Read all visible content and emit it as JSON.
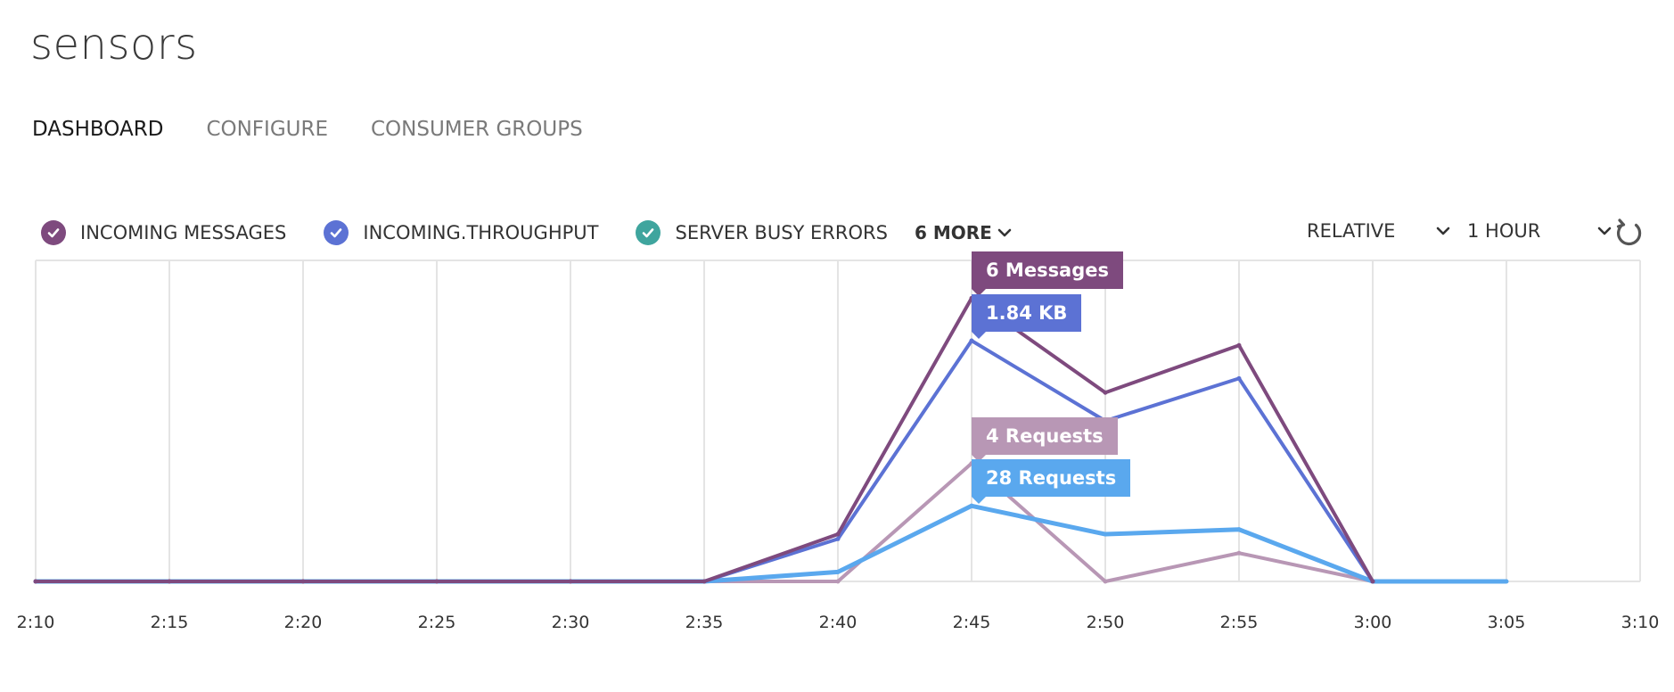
{
  "header": {
    "title": "sensors"
  },
  "tabs": [
    {
      "label": "DASHBOARD",
      "active": true
    },
    {
      "label": "CONFIGURE",
      "active": false
    },
    {
      "label": "CONSUMER GROUPS",
      "active": false
    }
  ],
  "legend": {
    "items": [
      {
        "label": "INCOMING MESSAGES",
        "color": "#7e4a7e",
        "icon": "check-icon"
      },
      {
        "label": "INCOMING.THROUGHPUT",
        "color": "#5c72d4",
        "icon": "check-icon"
      },
      {
        "label": "SERVER BUSY ERRORS",
        "color": "#3fa59e",
        "icon": "check-icon"
      }
    ],
    "more_label": "6 MORE"
  },
  "controls": {
    "mode_label": "RELATIVE",
    "range_label": "1 HOUR",
    "refresh_icon": "refresh-icon"
  },
  "callouts": [
    {
      "text": "6 Messages",
      "color": "#7e4a7e"
    },
    {
      "text": "1.84 KB",
      "color": "#5c72d4"
    },
    {
      "text": "4 Requests",
      "color": "#b897b5"
    },
    {
      "text": "28 Requests",
      "color": "#5aa8ee"
    }
  ],
  "chart_data": {
    "type": "line",
    "x": [
      "2:10",
      "2:15",
      "2:20",
      "2:25",
      "2:30",
      "2:35",
      "2:40",
      "2:45",
      "2:50",
      "2:55",
      "3:00",
      "3:05",
      "3:10"
    ],
    "ylim": [
      0,
      6.8
    ],
    "grid": true,
    "series": [
      {
        "name": "INCOMING MESSAGES",
        "color": "#7e4a7e",
        "values": [
          0,
          0,
          0,
          0,
          0,
          0,
          1.0,
          6.0,
          4.0,
          5.0,
          0,
          null,
          null
        ]
      },
      {
        "name": "INCOMING.THROUGHPUT",
        "color": "#5c72d4",
        "values": [
          0,
          0,
          0,
          0,
          0,
          0,
          0.9,
          5.1,
          3.4,
          4.3,
          0,
          null,
          null
        ]
      },
      {
        "color": "#b897b5",
        "values": [
          0,
          0,
          0,
          0,
          0,
          0,
          0,
          2.5,
          0,
          0.6,
          0,
          null,
          null
        ]
      },
      {
        "color": "#5aa8ee",
        "values": [
          0,
          0,
          0,
          0,
          0,
          0,
          0.2,
          1.6,
          1.0,
          1.1,
          0,
          0,
          null
        ]
      }
    ]
  }
}
